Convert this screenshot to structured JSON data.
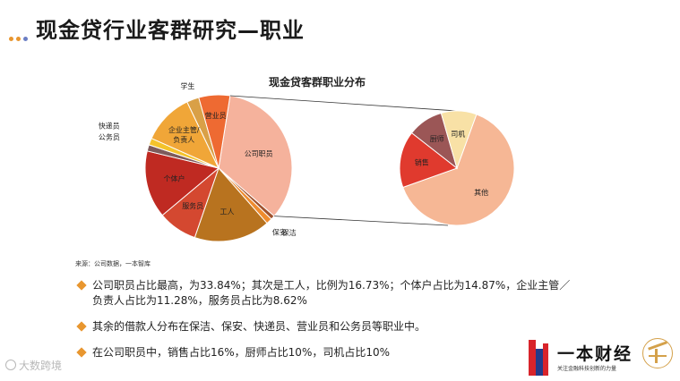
{
  "header": {
    "title": "现金贷行业客群研究—职业",
    "dot_colors": [
      "#e8962f",
      "#e8962f",
      "#6b7ec4"
    ]
  },
  "chart_title": "现金贷客群职业分布",
  "chart_data": [
    {
      "type": "pie",
      "title": "",
      "categories": [
        "公司职员",
        "保洁",
        "保安",
        "工人",
        "服务员",
        "个体户",
        "公务员",
        "快递员",
        "企业主管/负责人",
        "学生",
        "营业员"
      ],
      "values": [
        33.84,
        0.9,
        1.3,
        16.73,
        8.62,
        14.87,
        1.4,
        1.5,
        11.28,
        2.7,
        6.86
      ],
      "colors": [
        "#f5b29c",
        "#a0522d",
        "#ef8c2f",
        "#b8731f",
        "#d44830",
        "#bf2a22",
        "#7d5b5b",
        "#f4c32b",
        "#f0a638",
        "#d9a047",
        "#ee6a32"
      ]
    },
    {
      "type": "pie",
      "title": "",
      "categories": [
        "其他",
        "销售",
        "厨师",
        "司机"
      ],
      "values": [
        64,
        16,
        10,
        10
      ],
      "colors": [
        "#f6b795",
        "#e03a2e",
        "#9b5656",
        "#f8e1a6"
      ]
    }
  ],
  "source": "来源：公司数据，一本智库",
  "bullets": [
    "公司职员占比最高，为33.84%；其次是工人，比例为16.73%；个体户占比为14.87%，企业主管／",
    "负责人占比为11.28%，服务员占比为8.62%",
    "其余的借款人分布在保洁、保安、快递员、营业员和公务员等职业中。",
    "在公司职员中，销售占比16%，厨师占比10%，司机占比10%"
  ],
  "logo": {
    "name": "一本财经",
    "slogan": "关注金融科技创新的力量"
  },
  "watermark": "大数跨境"
}
